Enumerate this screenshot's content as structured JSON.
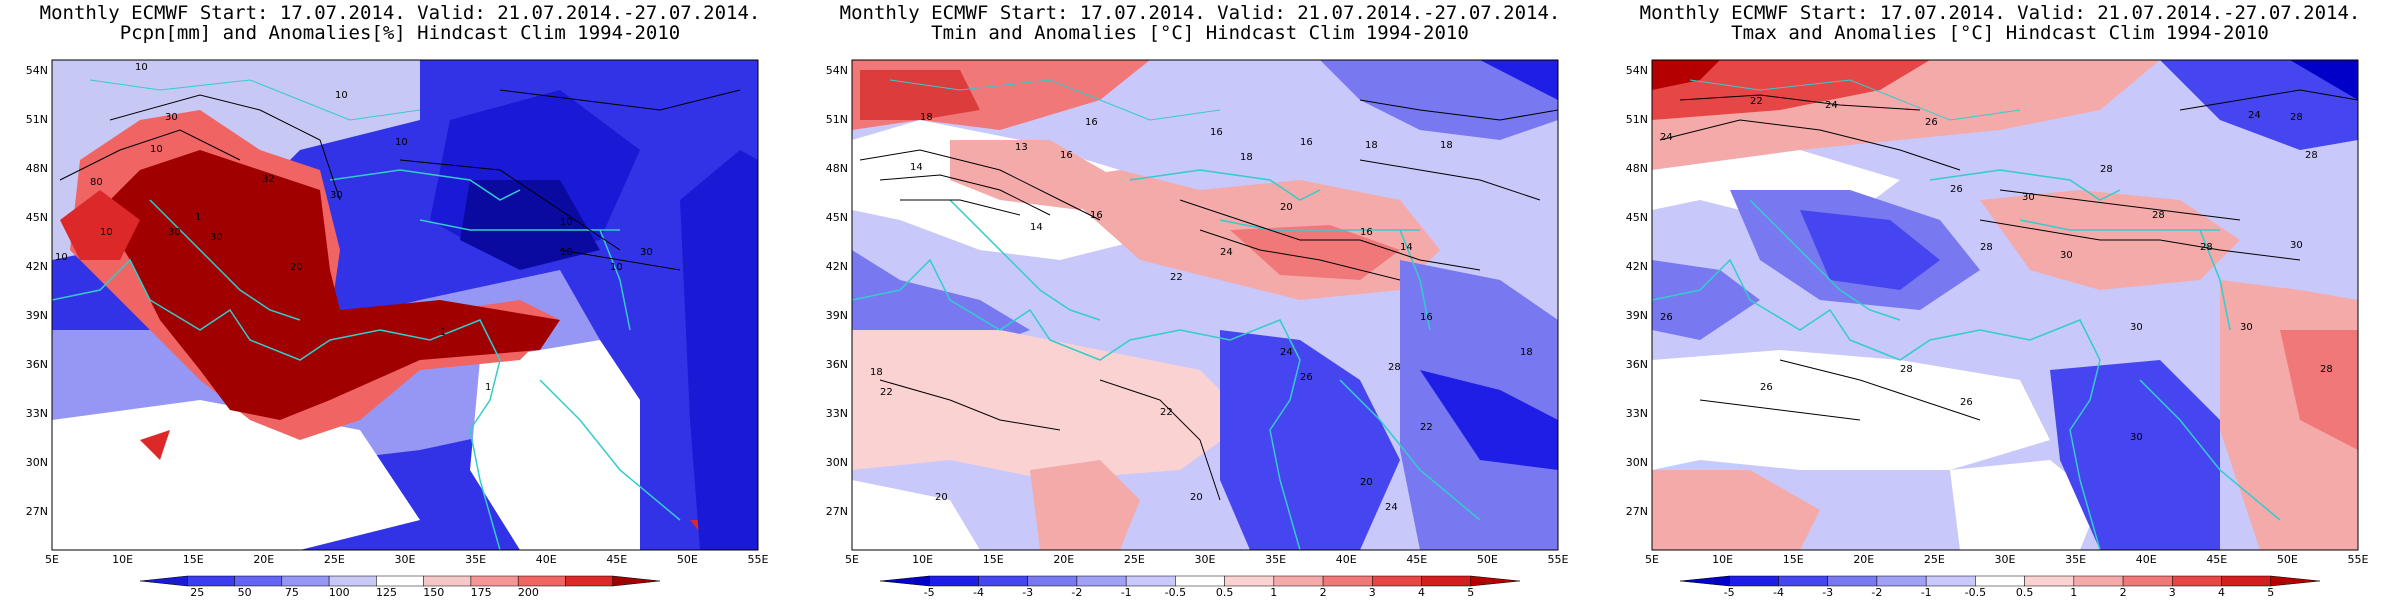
{
  "panels": [
    {
      "title_line1": "Monthly ECMWF Start: 17.07.2014. Valid: 21.07.2014.-27.07.2014.",
      "title_line2": "Pcpn[mm] and Anomalies[%] Hindcast Clim 1994-2010",
      "colorbar": {
        "labels": [
          "25",
          "50",
          "75",
          "100",
          "125",
          "150",
          "175",
          "200"
        ],
        "colors": [
          "#1a1ad6",
          "#3c3cf0",
          "#6464f5",
          "#9696f5",
          "#c8c8f5",
          "#ffffff",
          "#f5c8c8",
          "#f59696",
          "#f06464",
          "#dc2828",
          "#a00000"
        ]
      },
      "contour_labels": [
        "10",
        "30",
        "10",
        "10",
        "10",
        "30",
        "80",
        "32",
        "10",
        "30",
        "20",
        "10",
        "10",
        "10",
        "30",
        "30",
        "10",
        "1",
        "1",
        "1"
      ]
    },
    {
      "title_line1": "Monthly ECMWF Start: 17.07.2014. Valid: 21.07.2014.-27.07.2014.",
      "title_line2": "Tmin and Anomalies [°C] Hindcast Clim 1994-2010",
      "colorbar": {
        "labels": [
          "-5",
          "-4",
          "-3",
          "-2",
          "-1",
          "-0.5",
          "0.5",
          "1",
          "2",
          "3",
          "4",
          "5"
        ],
        "colors": [
          "#0000c8",
          "#1e1ee6",
          "#4646f0",
          "#7878f0",
          "#a0a0f5",
          "#c8c8fa",
          "#ffffff",
          "#fad2d2",
          "#f5aaaa",
          "#f07878",
          "#e64646",
          "#d21e1e",
          "#b40000"
        ]
      },
      "contour_labels": [
        "18",
        "16",
        "16",
        "18",
        "16",
        "13",
        "14",
        "16",
        "18",
        "18",
        "16",
        "14",
        "16",
        "14",
        "20",
        "24",
        "22",
        "16",
        "18",
        "22",
        "24",
        "26",
        "28",
        "20",
        "22",
        "20",
        "24",
        "22",
        "18",
        "20"
      ]
    },
    {
      "title_line1": "Monthly ECMWF Start: 17.07.2014. Valid: 21.07.2014.-27.07.2014.",
      "title_line2": "Tmax and Anomalies [°C] Hindcast Clim 1994-2010",
      "colorbar": {
        "labels": [
          "-5",
          "-4",
          "-3",
          "-2",
          "-1",
          "-0.5",
          "0.5",
          "1",
          "2",
          "3",
          "4",
          "5"
        ],
        "colors": [
          "#0000c8",
          "#1e1ee6",
          "#4646f0",
          "#7878f0",
          "#a0a0f5",
          "#c8c8fa",
          "#ffffff",
          "#fad2d2",
          "#f5aaaa",
          "#f07878",
          "#e64646",
          "#d21e1e",
          "#b40000"
        ]
      },
      "contour_labels": [
        "22",
        "24",
        "26",
        "24",
        "28",
        "28",
        "24",
        "28",
        "30",
        "26",
        "28",
        "28",
        "30",
        "30",
        "28",
        "26",
        "30",
        "26",
        "28",
        "30",
        "30",
        "28",
        "26"
      ]
    }
  ],
  "axes": {
    "lon_labels": [
      "5E",
      "10E",
      "15E",
      "20E",
      "25E",
      "30E",
      "35E",
      "40E",
      "45E",
      "50E",
      "55E"
    ],
    "lat_labels": [
      "54N",
      "51N",
      "48N",
      "45N",
      "42N",
      "39N",
      "36N",
      "33N",
      "30N",
      "27N"
    ]
  }
}
